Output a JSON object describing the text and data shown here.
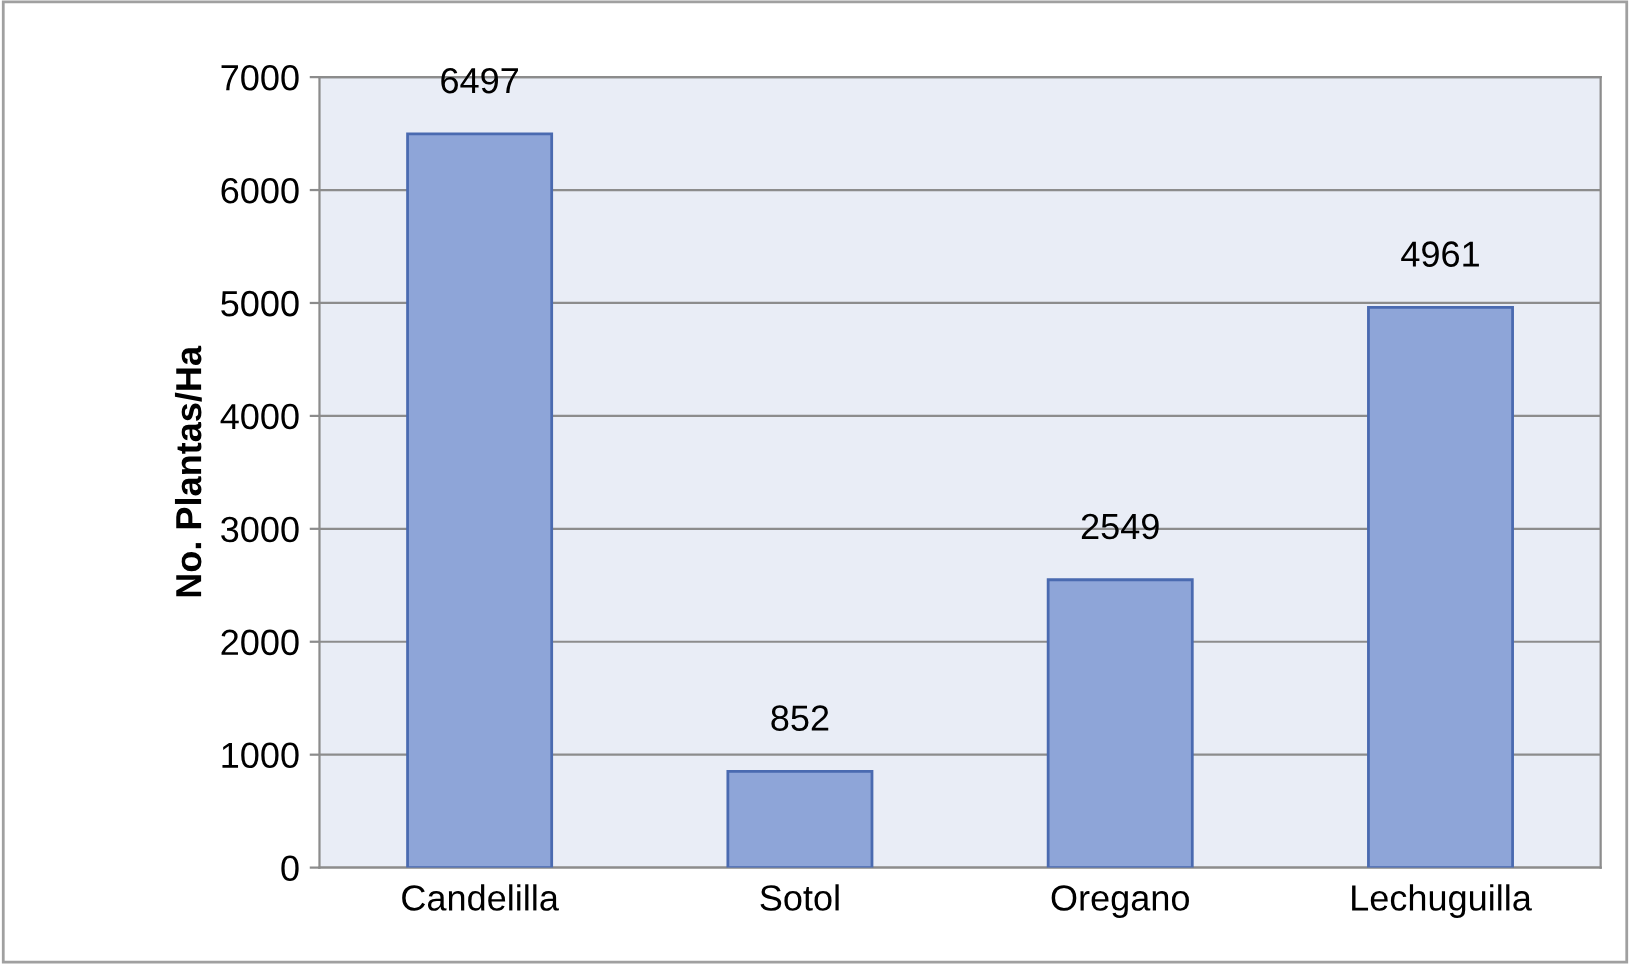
{
  "chart_data": {
    "type": "bar",
    "ylabel": "No. Plantas/Ha",
    "categories": [
      "Candelilla",
      "Sotol",
      "Oregano",
      "Lechuguilla"
    ],
    "values": [
      6497,
      852,
      2549,
      4961
    ],
    "color": "#8ea5d8",
    "ylim": [
      0,
      7000
    ],
    "yticks": [
      0,
      1000,
      2000,
      3000,
      4000,
      5000,
      6000,
      7000
    ],
    "grid": "y",
    "data_labels": true
  }
}
